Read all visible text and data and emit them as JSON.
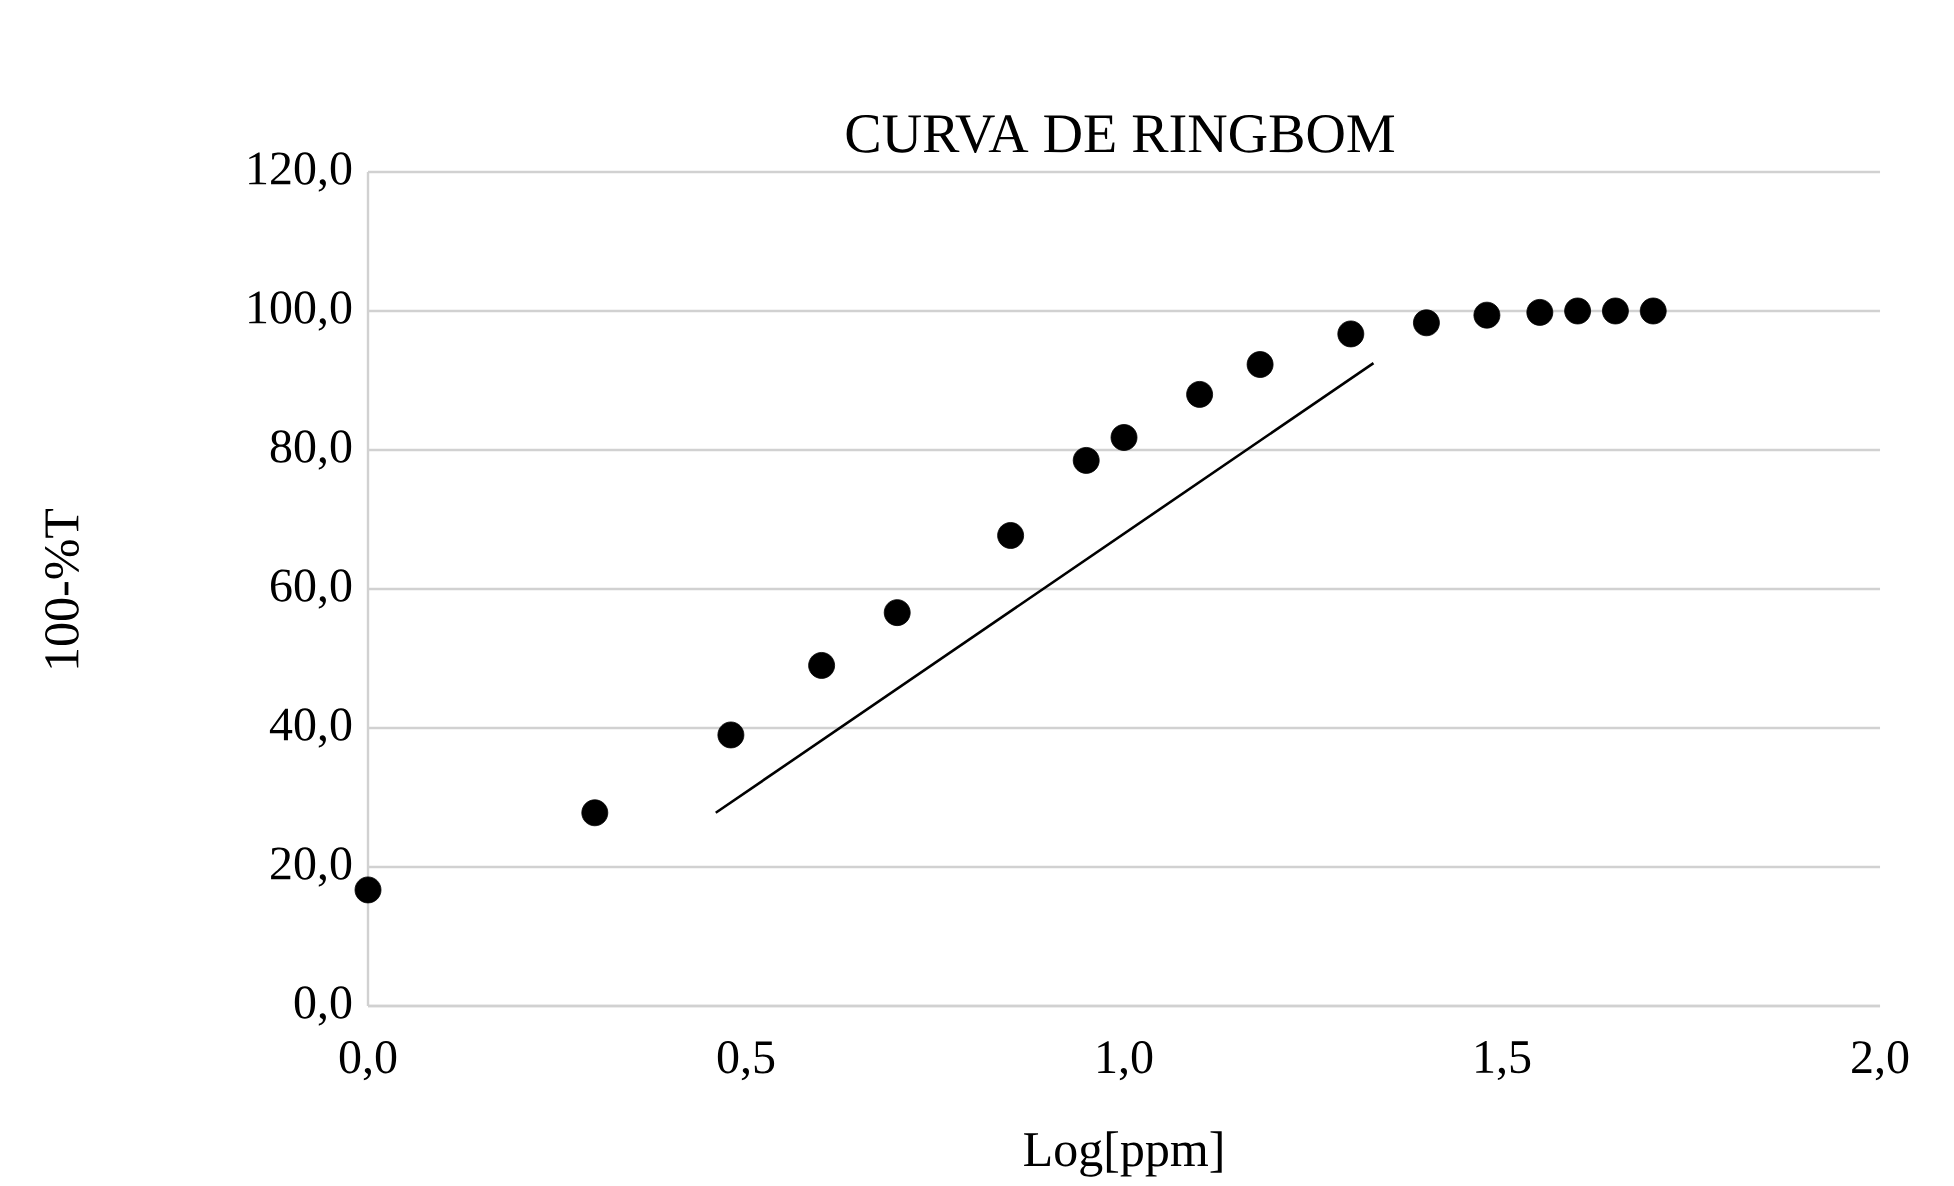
{
  "chart_data": {
    "type": "scatter",
    "title": "CURVA DE RINGBOM",
    "xlabel": "Log[ppm]",
    "ylabel": "100-%T",
    "xlim": [
      0,
      2
    ],
    "ylim": [
      0,
      120
    ],
    "xticks": [
      {
        "value": 0,
        "label": "0,0"
      },
      {
        "value": 0.5,
        "label": "0,5"
      },
      {
        "value": 1,
        "label": "1,0"
      },
      {
        "value": 1.5,
        "label": "1,5"
      },
      {
        "value": 2,
        "label": "2,0"
      }
    ],
    "yticks": [
      {
        "value": 0,
        "label": "0,0"
      },
      {
        "value": 20,
        "label": "20,0"
      },
      {
        "value": 40,
        "label": "40,0"
      },
      {
        "value": 60,
        "label": "60,0"
      },
      {
        "value": 80,
        "label": "80,0"
      },
      {
        "value": 100,
        "label": "100,0"
      },
      {
        "value": 120,
        "label": "120,0"
      }
    ],
    "grid": "y",
    "series": [
      {
        "marker": "circle",
        "color": "#000000",
        "x": [
          0,
          0.3,
          0.48,
          0.6,
          0.7,
          0.85,
          0.95,
          1.0,
          1.1,
          1.18,
          1.3,
          1.4,
          1.48,
          1.55,
          1.6,
          1.65,
          1.7
        ],
        "values": [
          16.7,
          27.8,
          39.0,
          49.0,
          56.6,
          67.7,
          78.5,
          81.8,
          88.0,
          92.3,
          96.7,
          98.3,
          99.4,
          99.8,
          100,
          100,
          100
        ]
      },
      {
        "type": "line",
        "marker": "none",
        "color": "#000000",
        "x": [
          0.46,
          1.33
        ],
        "values": [
          27.8,
          92.5
        ]
      }
    ]
  }
}
